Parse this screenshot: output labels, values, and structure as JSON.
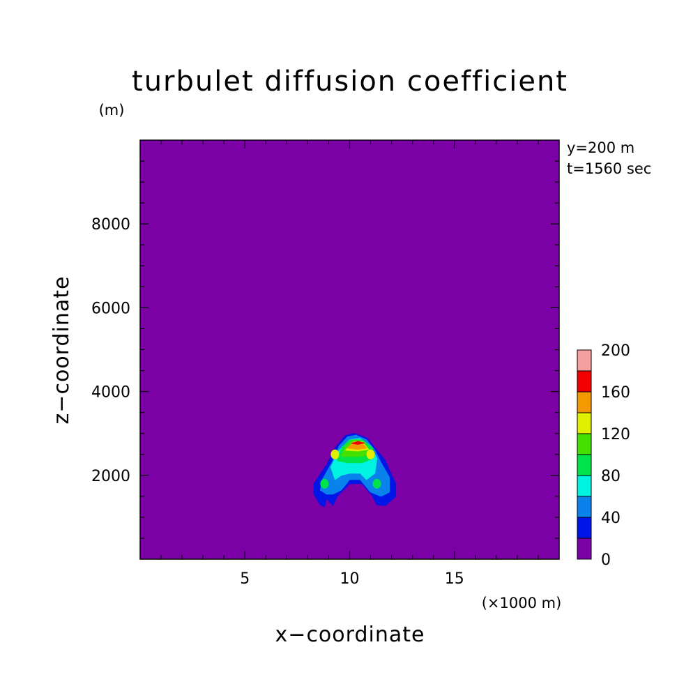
{
  "chart_data": {
    "type": "heatmap",
    "title": "turbulet diffusion coefficient",
    "xlabel": "x−coordinate",
    "ylabel": "z−coordinate",
    "x_unit": "(×1000 m)",
    "y_unit": "(m)",
    "annotations": [
      "y=200 m",
      "t=1560 sec"
    ],
    "xlim": [
      0,
      20
    ],
    "ylim": [
      0,
      10000
    ],
    "x_ticks": [
      {
        "value": 5,
        "label": "5"
      },
      {
        "value": 10,
        "label": "10"
      },
      {
        "value": 15,
        "label": "15"
      }
    ],
    "y_ticks": [
      {
        "value": 2000,
        "label": "2000"
      },
      {
        "value": 4000,
        "label": "4000"
      },
      {
        "value": 6000,
        "label": "6000"
      },
      {
        "value": 8000,
        "label": "8000"
      }
    ],
    "colorbar": {
      "range": [
        0,
        200
      ],
      "step": 20,
      "labels": [
        "0",
        "40",
        "80",
        "120",
        "160",
        "200"
      ],
      "colors": [
        "#7b00a6",
        "#0016e6",
        "#0a82ec",
        "#00f2e0",
        "#00e44a",
        "#46e000",
        "#e0ee00",
        "#f29a00",
        "#f00000",
        "#f5a0a0"
      ]
    },
    "background_value": 0,
    "contours": [
      {
        "level": 20,
        "color": "#0016e6",
        "points": [
          [
            8.6,
            1300
          ],
          [
            8.3,
            1550
          ],
          [
            8.3,
            1800
          ],
          [
            8.9,
            2250
          ],
          [
            9.3,
            2650
          ],
          [
            9.8,
            2950
          ],
          [
            10.2,
            3000
          ],
          [
            10.8,
            2900
          ],
          [
            11.3,
            2600
          ],
          [
            11.7,
            2350
          ],
          [
            12.0,
            2000
          ],
          [
            12.2,
            1800
          ],
          [
            12.2,
            1500
          ],
          [
            11.7,
            1280
          ],
          [
            11.3,
            1300
          ],
          [
            11.1,
            1500
          ],
          [
            10.6,
            1800
          ],
          [
            10.0,
            1800
          ],
          [
            9.4,
            1500
          ],
          [
            9.2,
            1280
          ],
          [
            8.9,
            1450
          ],
          [
            8.8,
            1250
          ]
        ]
      },
      {
        "level": 40,
        "color": "#0a82ec",
        "points": [
          [
            8.9,
            1550
          ],
          [
            8.6,
            1650
          ],
          [
            8.7,
            1900
          ],
          [
            9.2,
            2350
          ],
          [
            9.5,
            2700
          ],
          [
            9.9,
            2920
          ],
          [
            10.3,
            2960
          ],
          [
            10.8,
            2850
          ],
          [
            11.2,
            2600
          ],
          [
            11.5,
            2300
          ],
          [
            11.9,
            1950
          ],
          [
            11.9,
            1600
          ],
          [
            11.5,
            1500
          ],
          [
            11.0,
            1600
          ],
          [
            10.5,
            1900
          ],
          [
            10.0,
            1900
          ],
          [
            9.6,
            1650
          ],
          [
            9.2,
            1550
          ]
        ]
      },
      {
        "level": 60,
        "color": "#00f2e0",
        "points": [
          [
            9.3,
            1900
          ],
          [
            9.1,
            2200
          ],
          [
            9.5,
            2600
          ],
          [
            10.0,
            2850
          ],
          [
            10.5,
            2880
          ],
          [
            11.0,
            2700
          ],
          [
            11.3,
            2400
          ],
          [
            11.2,
            2050
          ],
          [
            10.8,
            1900
          ],
          [
            10.5,
            2050
          ],
          [
            10.0,
            2050
          ],
          [
            9.6,
            2000
          ]
        ]
      },
      {
        "level": 80,
        "color": "#00e44a",
        "points": [
          [
            9.4,
            2350
          ],
          [
            9.6,
            2650
          ],
          [
            10.0,
            2850
          ],
          [
            10.6,
            2850
          ],
          [
            11.1,
            2650
          ],
          [
            11.1,
            2400
          ],
          [
            10.6,
            2300
          ],
          [
            9.9,
            2300
          ]
        ]
      },
      {
        "level": 100,
        "color": "#46e000",
        "points": [
          [
            9.6,
            2450
          ],
          [
            9.8,
            2700
          ],
          [
            10.2,
            2850
          ],
          [
            10.7,
            2800
          ],
          [
            11.0,
            2550
          ],
          [
            10.6,
            2450
          ],
          [
            10.0,
            2450
          ]
        ]
      },
      {
        "level": 120,
        "color": "#e0ee00",
        "points": [
          [
            9.8,
            2600
          ],
          [
            10.2,
            2800
          ],
          [
            10.6,
            2800
          ],
          [
            10.9,
            2620
          ],
          [
            10.4,
            2580
          ]
        ]
      },
      {
        "level": 140,
        "color": "#f29a00",
        "points": [
          [
            9.9,
            2650
          ],
          [
            10.2,
            2800
          ],
          [
            10.6,
            2780
          ],
          [
            10.8,
            2650
          ],
          [
            10.4,
            2620
          ]
        ]
      },
      {
        "level": 160,
        "color": "#f00000",
        "points": [
          [
            10.1,
            2760
          ],
          [
            10.4,
            2810
          ],
          [
            10.7,
            2770
          ],
          [
            10.4,
            2740
          ]
        ]
      }
    ],
    "local_spots": [
      {
        "x": 8.8,
        "z": 1800,
        "color": "#00e44a"
      },
      {
        "x": 11.3,
        "z": 1800,
        "color": "#00e44a"
      },
      {
        "x": 9.3,
        "z": 2500,
        "color": "#e0ee00"
      },
      {
        "x": 11.0,
        "z": 2500,
        "color": "#e0ee00"
      }
    ]
  }
}
